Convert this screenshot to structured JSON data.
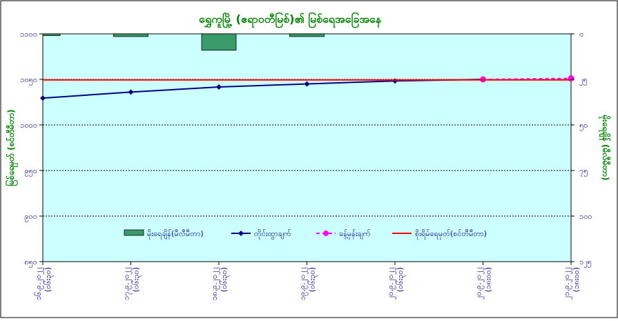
{
  "chart_data": {
    "type": "line",
    "title": "ရွှေကူမြို့ (ဧရာဝတီမြစ်)၏ မြစ်ရေအခြေအနေ",
    "ylabel_left": "မြစ်ရေမှတ် (စင်တီမီတာ)",
    "ylabel_right": "မိုးရေချိန် (မီလီမီတာ)",
    "y_left_range": [
      650,
      1100
    ],
    "y_left_ticks": [
      "၁၁၀၀",
      "၁၀၅၀",
      "၁၀၀၀",
      "၉၅၀",
      "၉၀၀",
      "၈၅၀"
    ],
    "y_right_range": [
      0,
      125
    ],
    "y_right_ticks": [
      "၀",
      "၂၅",
      "၅၀",
      "၇၅",
      "၁၀၀",
      "၁၂၅"
    ],
    "categories": [
      {
        "date": "၁၆.၉.၂၀၂၂",
        "time": "(၀၆း၃၀)"
      },
      {
        "date": "၁၇.၉.၂၀၂၂",
        "time": "(၀၆း၃၀)"
      },
      {
        "date": "၁၈.၉.၂၀၂၂",
        "time": "(၀၆း၃၀)"
      },
      {
        "date": "၁၉.၉.၂၀၂၂",
        "time": "(၀၆း၃၀)"
      },
      {
        "date": "၂၀.၉.၂၀၂၂",
        "time": "(၀၆း၃၀)"
      },
      {
        "date": "၂၀.၉.၂၀၂၂",
        "time": "(၁၈း၀၀)"
      },
      {
        "date": "၂၁.၉.၂၀၂၂",
        "time": "(၁၈း၀၀)"
      }
    ],
    "series": [
      {
        "name": "မိုးရေချိန်(မီလီမီတာ)",
        "type": "bar",
        "axis": "right",
        "color": "#3a9a6a",
        "values": [
          1,
          1.5,
          9,
          1.5,
          null,
          null,
          null
        ]
      },
      {
        "name": "တိုင်းထွာချက်",
        "type": "line",
        "axis": "left",
        "color": "#000080",
        "values": [
          973,
          985,
          995,
          1001,
          1007,
          1010,
          null
        ]
      },
      {
        "name": "ခန့်မှန်းချက်",
        "type": "line-dashed",
        "axis": "left",
        "color": "#ff00ff",
        "values": [
          null,
          null,
          null,
          null,
          null,
          1010,
          1012
        ]
      },
      {
        "name": "စိုးရိမ်ရေမှတ်(စင်တီမီတာ)",
        "type": "hline",
        "axis": "left",
        "color": "#ff0000",
        "value": 1009
      }
    ],
    "colors": {
      "plot_bg": "#ccffff",
      "title": "#008000",
      "axis_text": "#000080",
      "right_axis_label": "#008000"
    }
  }
}
